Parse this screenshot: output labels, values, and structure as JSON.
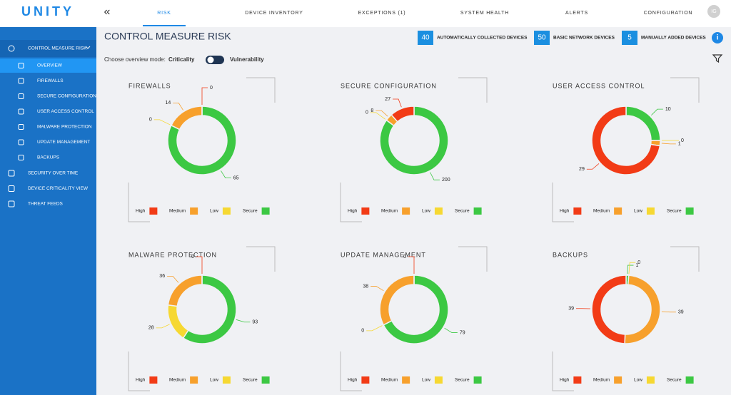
{
  "header": {
    "logo": "UNITY",
    "collapse": "«",
    "tabs": [
      "RISK",
      "DEVICE INVENTORY",
      "EXCEPTIONS (1)",
      "SYSTEM HEALTH",
      "ALERTS",
      "CONFIGURATION"
    ],
    "active_tab": 0,
    "user_initials": "IG"
  },
  "sidebar": {
    "section": "CONTROL MEASURE RISK",
    "sub_items": [
      "OVERVIEW",
      "FIREWALLS",
      "SECURE CONFIGURATION",
      "USER ACCESS CONTROL",
      "MALWARE PROTECTION",
      "UPDATE MANAGEMENT",
      "BACKUPS"
    ],
    "active_sub_item": 0,
    "items": [
      "SECURITY OVER TIME",
      "DEVICE CRITICALITY VIEW",
      "THREAT FEEDS"
    ]
  },
  "page": {
    "title": "CONTROL MEASURE RISK",
    "counts": [
      {
        "value": 40,
        "label": "AUTOMATICALLY COLLECTED DEVICES"
      },
      {
        "value": 50,
        "label": "BASIC NETWORK DEVICES"
      },
      {
        "value": 5,
        "label": "MANUALLY ADDED DEVICES"
      }
    ],
    "mode_prompt": "Choose overview mode:",
    "mode_options": [
      "Criticality",
      "Vulnerability"
    ]
  },
  "legend": [
    {
      "name": "High",
      "color": "#f23b16"
    },
    {
      "name": "Medium",
      "color": "#f7a02c"
    },
    {
      "name": "Low",
      "color": "#f6d832"
    },
    {
      "name": "Secure",
      "color": "#3cc843"
    }
  ],
  "panels": [
    {
      "title": "FIREWALLS",
      "values": [
        0,
        14,
        0,
        65
      ]
    },
    {
      "title": "SECURE CONFIGURATION",
      "values": [
        27,
        8,
        0,
        200
      ]
    },
    {
      "title": "USER ACCESS CONTROL",
      "values": [
        29,
        1,
        0,
        10
      ]
    },
    {
      "title": "MALWARE PROTECTION",
      "values": [
        0,
        36,
        28,
        93
      ]
    },
    {
      "title": "UPDATE MANAGEMENT",
      "values": [
        0,
        38,
        0,
        79
      ]
    },
    {
      "title": "BACKUPS",
      "values": [
        39,
        39,
        0,
        1
      ]
    }
  ]
}
